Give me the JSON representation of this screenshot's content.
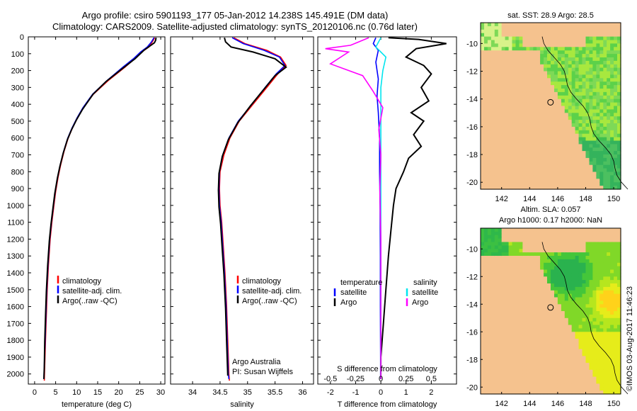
{
  "title_line1": "Argo profile: csiro 5901193_177 05-Jan-2012 14.238S 145.491E (DM data)",
  "title_line2": "Climatology: CARS2009. Satellite-adjusted climatology: synTS_20120106.nc (0.76d later)",
  "footer_vertical": "©IMOS 03-Aug-2017 11:46:23",
  "colors": {
    "climatology": "#ff0000",
    "satellite": "#0000ff",
    "argo": "#000000",
    "sat_salinity": "#00e5ee",
    "argo_salinity": "#ff00ff",
    "land": "#f5c28e"
  },
  "depth_ticks": [
    "0",
    "100",
    "200",
    "300",
    "400",
    "500",
    "600",
    "700",
    "800",
    "900",
    "1000",
    "1100",
    "1200",
    "1300",
    "1400",
    "1500",
    "1600",
    "1700",
    "1800",
    "1900",
    "2000"
  ],
  "chart_data": [
    {
      "type": "line",
      "name": "temperature",
      "xlabel": "temperature (deg C)",
      "ylabel": "depth",
      "xlim": [
        -1.5,
        31
      ],
      "ylim": [
        2060,
        0
      ],
      "xticks": [
        "0",
        "5",
        "10",
        "15",
        "20",
        "25",
        "30"
      ],
      "xtick_values": [
        0,
        5,
        10,
        15,
        20,
        25,
        30
      ],
      "legend": [
        "climatology",
        "satellite-adj. clim.",
        "Argo(..raw -QC)"
      ],
      "series": [
        {
          "name": "climatology",
          "color": "red",
          "points": [
            [
              28.6,
              5
            ],
            [
              28.0,
              30
            ],
            [
              27.2,
              60
            ],
            [
              25.5,
              90
            ],
            [
              23.8,
              130
            ],
            [
              21.5,
              180
            ],
            [
              17.5,
              260
            ],
            [
              14.0,
              340
            ],
            [
              11.6,
              420
            ],
            [
              10.2,
              480
            ],
            [
              9.0,
              540
            ],
            [
              8.0,
              600
            ],
            [
              7.0,
              680
            ],
            [
              6.2,
              760
            ],
            [
              5.6,
              830
            ],
            [
              5.0,
              920
            ],
            [
              4.6,
              1000
            ],
            [
              4.1,
              1100
            ],
            [
              3.7,
              1200
            ],
            [
              3.3,
              1350
            ],
            [
              3.0,
              1500
            ],
            [
              2.8,
              1650
            ],
            [
              2.6,
              1800
            ],
            [
              2.4,
              1950
            ],
            [
              2.3,
              2040
            ]
          ]
        },
        {
          "name": "satellite-adj. clim.",
          "color": "blue",
          "points": [
            [
              28.4,
              5
            ],
            [
              27.8,
              30
            ],
            [
              26.8,
              60
            ],
            [
              25.2,
              90
            ],
            [
              23.5,
              130
            ],
            [
              21.0,
              180
            ],
            [
              17.2,
              260
            ],
            [
              13.8,
              340
            ],
            [
              11.5,
              420
            ],
            [
              10.1,
              480
            ],
            [
              8.9,
              540
            ],
            [
              7.9,
              600
            ],
            [
              6.9,
              680
            ],
            [
              6.1,
              760
            ],
            [
              5.5,
              830
            ],
            [
              4.9,
              920
            ],
            [
              4.5,
              1000
            ],
            [
              4.0,
              1100
            ],
            [
              3.6,
              1200
            ],
            [
              3.2,
              1350
            ],
            [
              2.9,
              1500
            ],
            [
              2.7,
              1650
            ],
            [
              2.5,
              1800
            ],
            [
              2.3,
              1950
            ],
            [
              2.2,
              2030
            ]
          ]
        },
        {
          "name": "Argo(..raw -QC)",
          "color": "black",
          "points": [
            [
              28.9,
              5
            ],
            [
              28.8,
              20
            ],
            [
              28.5,
              35
            ],
            [
              26.0,
              80
            ],
            [
              23.9,
              130
            ],
            [
              20.8,
              190
            ],
            [
              17.0,
              265
            ],
            [
              13.9,
              340
            ],
            [
              11.4,
              430
            ],
            [
              10.0,
              490
            ],
            [
              8.8,
              550
            ],
            [
              7.8,
              610
            ],
            [
              6.8,
              690
            ],
            [
              6.0,
              770
            ],
            [
              5.4,
              840
            ],
            [
              4.8,
              930
            ],
            [
              4.4,
              1010
            ],
            [
              3.9,
              1110
            ],
            [
              3.5,
              1210
            ],
            [
              3.1,
              1360
            ],
            [
              2.8,
              1510
            ],
            [
              2.6,
              1660
            ],
            [
              2.4,
              1810
            ],
            [
              2.3,
              1960
            ],
            [
              2.2,
              2030
            ]
          ]
        }
      ]
    },
    {
      "type": "line",
      "name": "salinity",
      "xlabel": "salinity",
      "xlim": [
        33.6,
        36.2
      ],
      "ylim": [
        2060,
        0
      ],
      "xticks": [
        "34",
        "34.5",
        "35",
        "35.5",
        "36"
      ],
      "xtick_values": [
        34,
        34.5,
        35,
        35.5,
        36
      ],
      "legend": [
        "climatology",
        "satellite-adj. clim.",
        "Argo(..raw -QC)"
      ],
      "annotation_line1": "Argo Australia",
      "annotation_line2": "PI: Susan Wijffels",
      "series": [
        {
          "name": "climatology",
          "color": "red",
          "points": [
            [
              34.75,
              5
            ],
            [
              34.95,
              40
            ],
            [
              35.35,
              80
            ],
            [
              35.6,
              120
            ],
            [
              35.7,
              170
            ],
            [
              35.55,
              220
            ],
            [
              35.35,
              300
            ],
            [
              35.1,
              400
            ],
            [
              34.85,
              500
            ],
            [
              34.68,
              600
            ],
            [
              34.57,
              700
            ],
            [
              34.5,
              800
            ],
            [
              34.49,
              900
            ],
            [
              34.5,
              1000
            ],
            [
              34.53,
              1100
            ],
            [
              34.56,
              1250
            ],
            [
              34.59,
              1400
            ],
            [
              34.62,
              1600
            ],
            [
              34.64,
              1800
            ],
            [
              34.66,
              2000
            ],
            [
              34.67,
              2040
            ]
          ]
        },
        {
          "name": "satellite-adj. clim.",
          "color": "blue",
          "points": [
            [
              34.72,
              5
            ],
            [
              34.92,
              40
            ],
            [
              35.3,
              80
            ],
            [
              35.58,
              120
            ],
            [
              35.68,
              170
            ],
            [
              35.52,
              220
            ],
            [
              35.32,
              300
            ],
            [
              35.08,
              400
            ],
            [
              34.83,
              500
            ],
            [
              34.66,
              600
            ],
            [
              34.55,
              700
            ],
            [
              34.49,
              800
            ],
            [
              34.48,
              900
            ],
            [
              34.49,
              1000
            ],
            [
              34.52,
              1100
            ],
            [
              34.55,
              1250
            ],
            [
              34.58,
              1400
            ],
            [
              34.61,
              1600
            ],
            [
              34.63,
              1800
            ],
            [
              34.65,
              2000
            ],
            [
              34.66,
              2030
            ]
          ]
        },
        {
          "name": "Argo(..raw -QC)",
          "color": "black",
          "points": [
            [
              34.58,
              5
            ],
            [
              34.6,
              30
            ],
            [
              34.7,
              60
            ],
            [
              35.1,
              90
            ],
            [
              35.5,
              130
            ],
            [
              35.7,
              180
            ],
            [
              35.5,
              230
            ],
            [
              35.3,
              310
            ],
            [
              35.05,
              410
            ],
            [
              34.82,
              510
            ],
            [
              34.65,
              610
            ],
            [
              34.54,
              710
            ],
            [
              34.48,
              810
            ],
            [
              34.47,
              910
            ],
            [
              34.48,
              1010
            ],
            [
              34.51,
              1110
            ],
            [
              34.54,
              1260
            ],
            [
              34.57,
              1410
            ],
            [
              34.6,
              1610
            ],
            [
              34.62,
              1810
            ],
            [
              34.64,
              2010
            ]
          ]
        }
      ]
    },
    {
      "type": "line",
      "name": "difference",
      "xlabel": "T difference from climatology",
      "xlabel_top": "S difference from climatology",
      "xlim": [
        -2.5,
        3.0
      ],
      "ylim": [
        2060,
        0
      ],
      "xticks": [
        "-2",
        "-1",
        "0",
        "1",
        "2"
      ],
      "xtick_values": [
        -2,
        -1,
        0,
        1,
        2
      ],
      "s_ticks": [
        "-0.5",
        "-0.25",
        "0",
        "0.25",
        "0.5"
      ],
      "s_tick_values": [
        -0.5,
        -0.25,
        0,
        0.25,
        0.5
      ],
      "legend_temperature_title": "temperature",
      "legend_salinity_title": "salinity",
      "legend_temperature": [
        "satellite",
        "Argo"
      ],
      "legend_salinity": [
        "satellite",
        "Argo"
      ],
      "series": [
        {
          "name": "T satellite",
          "color": "blue",
          "points": [
            [
              -0.2,
              5
            ],
            [
              -0.3,
              40
            ],
            [
              -0.1,
              80
            ],
            [
              -0.2,
              150
            ],
            [
              -0.1,
              250
            ],
            [
              -0.15,
              350
            ],
            [
              -0.1,
              450
            ],
            [
              -0.05,
              600
            ],
            [
              -0.05,
              800
            ],
            [
              -0.03,
              1000
            ],
            [
              -0.02,
              1300
            ],
            [
              -0.02,
              1600
            ],
            [
              -0.01,
              1900
            ],
            [
              -0.01,
              2030
            ]
          ]
        },
        {
          "name": "T Argo",
          "color": "black",
          "points": [
            [
              0.3,
              5
            ],
            [
              1.5,
              15
            ],
            [
              2.6,
              40
            ],
            [
              1.4,
              70
            ],
            [
              1.0,
              120
            ],
            [
              1.7,
              170
            ],
            [
              2.0,
              220
            ],
            [
              1.6,
              300
            ],
            [
              1.9,
              380
            ],
            [
              1.2,
              450
            ],
            [
              1.7,
              500
            ],
            [
              1.3,
              580
            ],
            [
              1.6,
              650
            ],
            [
              1.1,
              720
            ],
            [
              0.9,
              800
            ],
            [
              0.6,
              900
            ],
            [
              0.5,
              1000
            ],
            [
              0.4,
              1150
            ],
            [
              0.3,
              1300
            ],
            [
              0.2,
              1500
            ],
            [
              0.1,
              1700
            ],
            [
              0.0,
              1900
            ],
            [
              0.0,
              2030
            ]
          ]
        },
        {
          "name": "S satellite",
          "color": "cyan",
          "points": [
            [
              0.0,
              5
            ],
            [
              -0.05,
              60
            ],
            [
              0.05,
              120
            ],
            [
              0.02,
              200
            ],
            [
              0.0,
              300
            ],
            [
              0.0,
              500
            ],
            [
              0.0,
              800
            ],
            [
              0.0,
              1100
            ],
            [
              0.0,
              1400
            ],
            [
              0.0,
              1700
            ],
            [
              0.0,
              2030
            ]
          ]
        },
        {
          "name": "S Argo",
          "color": "magenta",
          "points": [
            [
              -0.12,
              5
            ],
            [
              -0.3,
              50
            ],
            [
              -0.55,
              70
            ],
            [
              -0.32,
              90
            ],
            [
              -0.5,
              160
            ],
            [
              -0.18,
              230
            ],
            [
              -0.08,
              320
            ],
            [
              0.02,
              420
            ],
            [
              -0.02,
              550
            ],
            [
              0.0,
              700
            ],
            [
              -0.01,
              900
            ],
            [
              0.0,
              1200
            ],
            [
              0.0,
              1500
            ],
            [
              0.0,
              1800
            ],
            [
              0.0,
              2030
            ]
          ]
        }
      ]
    }
  ],
  "maps": [
    {
      "name": "sst-map",
      "title": "sat. SST: 28.9 Argo: 28.5",
      "xticks": [
        "142",
        "144",
        "146",
        "148",
        "150"
      ],
      "xtick_values": [
        142,
        144,
        146,
        148,
        150
      ],
      "yticks": [
        "-10",
        "-12",
        "-14",
        "-16",
        "-18",
        "-20"
      ],
      "ytick_values": [
        -10,
        -12,
        -14,
        -16,
        -18,
        -20
      ],
      "lon": [
        140.5,
        150.5
      ],
      "lat": [
        -8.5,
        -20.5
      ],
      "argo_lon": 145.491,
      "argo_lat": -14.238
    },
    {
      "name": "sla-map",
      "title_line1": "Altim. SLA: 0.057",
      "title_line2": "Argo h1000: 0.17 h2000: NaN",
      "xticks": [
        "142",
        "144",
        "146",
        "148",
        "150"
      ],
      "xtick_values": [
        142,
        144,
        146,
        148,
        150
      ],
      "yticks": [
        "-10",
        "-12",
        "-14",
        "-16",
        "-18",
        "-20"
      ],
      "ytick_values": [
        -10,
        -12,
        -14,
        -16,
        -18,
        -20
      ],
      "lon": [
        140.5,
        150.5
      ],
      "lat": [
        -8.5,
        -20.5
      ],
      "argo_lon": 145.491,
      "argo_lat": -14.238
    }
  ]
}
